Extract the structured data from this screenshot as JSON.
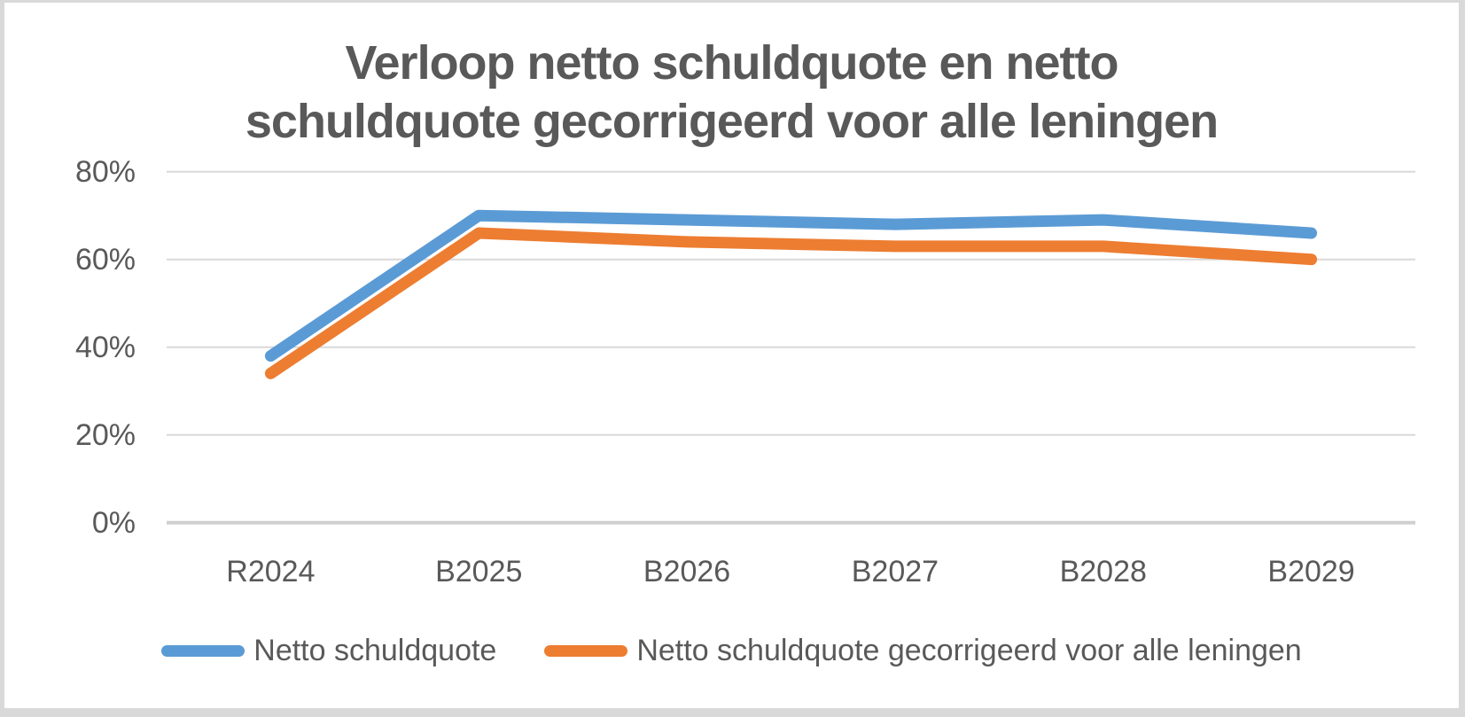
{
  "chart_data": {
    "type": "line",
    "title": "Verloop netto schuldquote en netto schuldquote gecorrigeerd voor alle leningen",
    "title_lines": {
      "line1": "Verloop netto schuldquote en netto",
      "line2": "schuldquote gecorrigeerd voor alle leningen"
    },
    "categories": [
      "R2024",
      "B2025",
      "B2026",
      "B2027",
      "B2028",
      "B2029"
    ],
    "series": [
      {
        "name": "Netto schuldquote",
        "color": "#5B9BD5",
        "values": [
          38,
          70,
          69,
          68,
          69,
          66
        ]
      },
      {
        "name": "Netto schuldquote gecorrigeerd voor alle leningen",
        "color": "#ED7D31",
        "values": [
          34,
          66,
          64,
          63,
          63,
          60
        ]
      }
    ],
    "xlabel": "",
    "ylabel": "",
    "ylim": [
      0,
      80
    ],
    "ytick_labels": [
      "0%",
      "20%",
      "40%",
      "60%",
      "80%"
    ],
    "grid": true,
    "legend_position": "bottom",
    "colors": {
      "text": "#595959",
      "gridline": "#D9D9D9",
      "axis_line": "#CFCFCF",
      "background": "#FFFFFF",
      "border": "#D9D9D9"
    }
  }
}
